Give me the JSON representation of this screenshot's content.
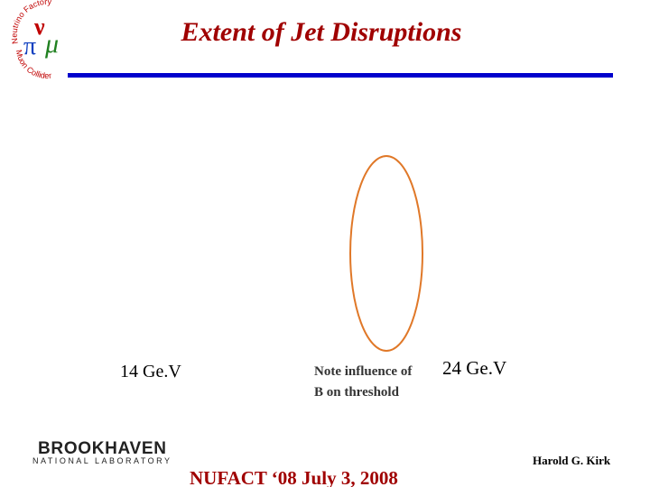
{
  "header": {
    "title": "Extent of Jet Disruptions",
    "logo": {
      "top": "Neutrino Factory",
      "bottom": "Muon Collider",
      "symbols": [
        "ν",
        "π",
        "μ"
      ]
    }
  },
  "body": {
    "left_label": "14 Ge.V",
    "note": [
      "Note influence of",
      "B on threshold"
    ],
    "right_label": "24 Ge.V"
  },
  "footer": {
    "lab": [
      "BROOKHAVEN",
      "NATIONAL LABORATORY"
    ],
    "event": "NUFACT ‘08 July 3, 2008",
    "author": "Harold G. Kirk"
  }
}
